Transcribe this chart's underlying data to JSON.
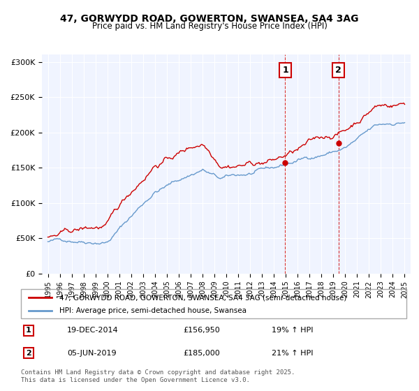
{
  "title": "47, GORWYDD ROAD, GOWERTON, SWANSEA, SA4 3AG",
  "subtitle": "Price paid vs. HM Land Registry's House Price Index (HPI)",
  "legend_line1": "47, GORWYDD ROAD, GOWERTON, SWANSEA, SA4 3AG (semi-detached house)",
  "legend_line2": "HPI: Average price, semi-detached house, Swansea",
  "footer": "Contains HM Land Registry data © Crown copyright and database right 2025.\nThis data is licensed under the Open Government Licence v3.0.",
  "red_color": "#cc0000",
  "blue_color": "#6699cc",
  "vline_color": "#cc0000",
  "bg_color": "#f0f4ff",
  "annotation1": {
    "label": "1",
    "date_str": "19-DEC-2014",
    "price": "£156,950",
    "pct": "19% ↑ HPI",
    "x": 2014.96
  },
  "annotation2": {
    "label": "2",
    "date_str": "05-JUN-2019",
    "price": "£185,000",
    "pct": "21% ↑ HPI",
    "x": 2019.43
  },
  "ylim": [
    0,
    310000
  ],
  "xlim": [
    1994.5,
    2025.5
  ],
  "yticks": [
    0,
    50000,
    100000,
    150000,
    200000,
    250000,
    300000
  ],
  "ytick_labels": [
    "£0",
    "£50K",
    "£100K",
    "£150K",
    "£200K",
    "£250K",
    "£300K"
  ],
  "xticks": [
    1995,
    1996,
    1997,
    1998,
    1999,
    2000,
    2001,
    2002,
    2003,
    2004,
    2005,
    2006,
    2007,
    2008,
    2009,
    2010,
    2011,
    2012,
    2013,
    2014,
    2015,
    2016,
    2017,
    2018,
    2019,
    2020,
    2021,
    2022,
    2023,
    2024,
    2025
  ]
}
